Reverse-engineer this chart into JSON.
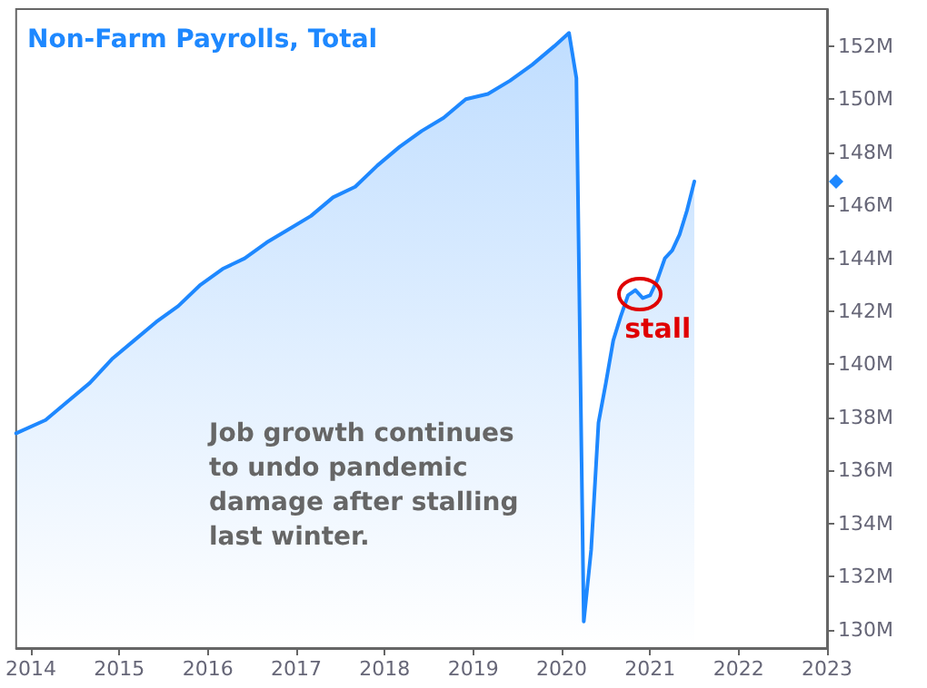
{
  "chart_data": {
    "type": "area",
    "title": "Non-Farm Payrolls, Total",
    "x": [
      "2013-11",
      "2014-03",
      "2014-06",
      "2014-09",
      "2014-12",
      "2015-03",
      "2015-06",
      "2015-09",
      "2015-12",
      "2016-03",
      "2016-06",
      "2016-09",
      "2016-12",
      "2017-03",
      "2017-06",
      "2017-09",
      "2017-12",
      "2018-03",
      "2018-06",
      "2018-09",
      "2018-12",
      "2019-03",
      "2019-06",
      "2019-09",
      "2019-12",
      "2020-02",
      "2020-03",
      "2020-04",
      "2020-05",
      "2020-06",
      "2020-07",
      "2020-08",
      "2020-09",
      "2020-10",
      "2020-11",
      "2020-12",
      "2021-01",
      "2021-02",
      "2021-03",
      "2021-04",
      "2021-05",
      "2021-06",
      "2021-07"
    ],
    "series": [
      {
        "color": "#1e88ff",
        "values": [
          137.4,
          137.9,
          138.6,
          139.3,
          140.2,
          140.9,
          141.6,
          142.2,
          143.0,
          143.6,
          144.0,
          144.6,
          145.1,
          145.6,
          146.3,
          146.7,
          147.5,
          148.2,
          148.8,
          149.3,
          150.0,
          150.2,
          150.7,
          151.3,
          152.0,
          152.5,
          150.8,
          130.3,
          133.0,
          137.8,
          139.3,
          140.9,
          141.8,
          142.6,
          142.8,
          142.5,
          142.6,
          143.2,
          144.0,
          144.3,
          144.9,
          145.8,
          146.9
        ]
      }
    ],
    "xlim": [
      "2013-11",
      "2023"
    ],
    "xticks": [
      "2014",
      "2015",
      "2016",
      "2017",
      "2018",
      "2019",
      "2020",
      "2021",
      "2022",
      "2023"
    ],
    "ylim": [
      129.3,
      153.4
    ],
    "yticks": [
      {
        "value": 130,
        "label": "130M"
      },
      {
        "value": 132,
        "label": "132M"
      },
      {
        "value": 134,
        "label": "134M"
      },
      {
        "value": 136,
        "label": "136M"
      },
      {
        "value": 138,
        "label": "138M"
      },
      {
        "value": 140,
        "label": "140M"
      },
      {
        "value": 142,
        "label": "142M"
      },
      {
        "value": 144,
        "label": "144M"
      },
      {
        "value": 146,
        "label": "146M"
      },
      {
        "value": 148,
        "label": "148M"
      },
      {
        "value": 150,
        "label": "150M"
      },
      {
        "value": 152,
        "label": "152M"
      }
    ],
    "annotations": [
      {
        "text": "stall",
        "x": "2020-12",
        "y": 142.5
      },
      "Job growth continues to undo pandemic damage after stalling last winter."
    ],
    "grid": false,
    "marker": "none",
    "line_style": "solid"
  }
}
